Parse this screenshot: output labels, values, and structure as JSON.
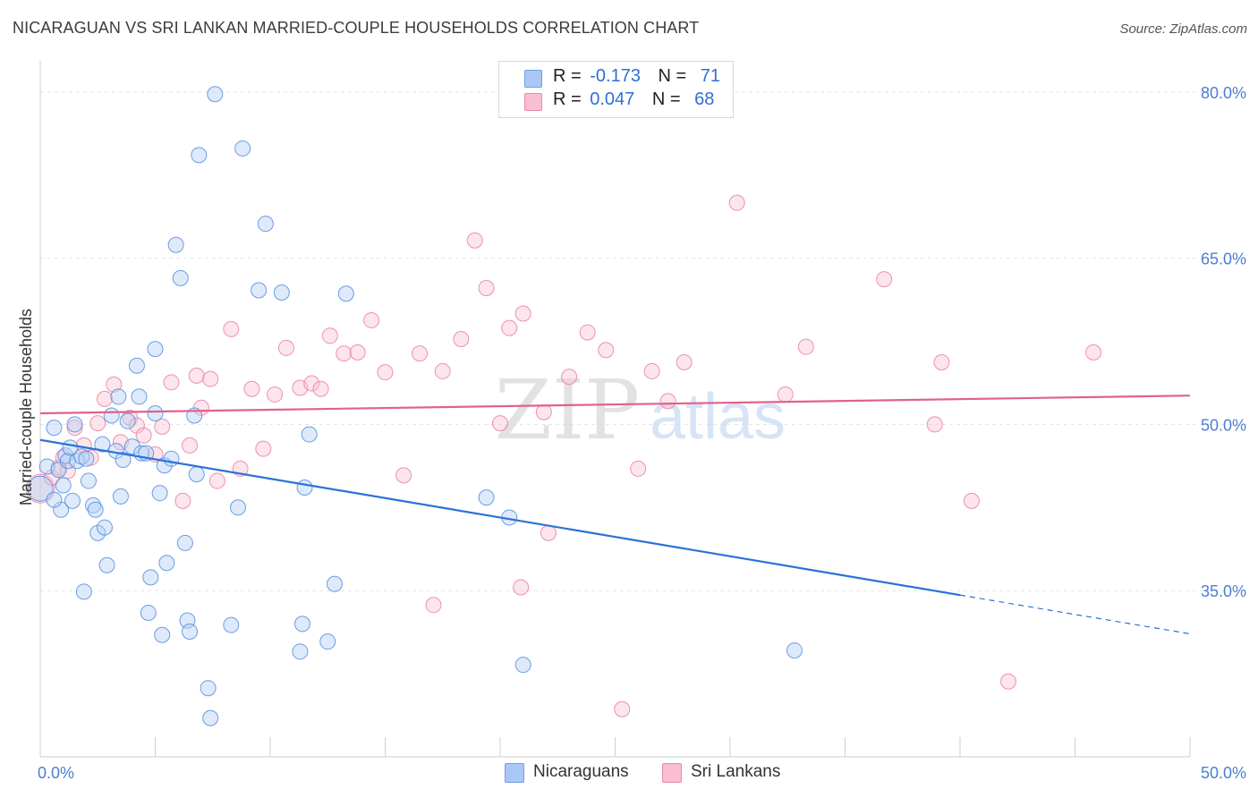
{
  "title": "NICARAGUAN VS SRI LANKAN MARRIED-COUPLE HOUSEHOLDS CORRELATION CHART",
  "source": "Source: ZipAtlas.com",
  "watermark": {
    "zip": "ZIP",
    "atlas": "atlas"
  },
  "legend": {
    "rows": [
      {
        "r_label": "R =",
        "r_value": "-0.173",
        "n_label": "N =",
        "n_value": "71",
        "color": "#a9c8f5",
        "border": "#6f9fe0"
      },
      {
        "r_label": "R =",
        "r_value": "0.047",
        "n_label": "N =",
        "n_value": "68",
        "color": "#f7bfd0",
        "border": "#e88aa8"
      }
    ]
  },
  "bottom_legend": {
    "series1": "Nicaraguans",
    "series2": "Sri Lankans"
  },
  "chart_data": {
    "type": "scatter",
    "title": "NICARAGUAN VS SRI LANKAN MARRIED-COUPLE HOUSEHOLDS CORRELATION CHART",
    "xlabel": "",
    "ylabel": "Married-couple Households",
    "xlim": [
      0,
      50
    ],
    "ylim": [
      20,
      82
    ],
    "x_tick_labels": [
      "0.0%",
      "50.0%"
    ],
    "y_ticks": [
      35,
      50,
      65,
      80
    ],
    "y_tick_labels": [
      "35.0%",
      "50.0%",
      "65.0%",
      "80.0%"
    ],
    "grid": true,
    "colors": {
      "blue": "#4a86e0",
      "blue_fill": "#b6d0f5",
      "pink": "#e8799c",
      "pink_fill": "#f8c6d5",
      "blue_line": "#2a72d8",
      "pink_line": "#e0628c"
    },
    "series": [
      {
        "name": "Nicaraguans",
        "trend": {
          "x0": 0,
          "y0": 48.6,
          "x1": 40,
          "y1": 34.6,
          "dash_to_x": 50,
          "dash_to_y": 31.1
        },
        "points": [
          [
            0.0,
            44.2
          ],
          [
            0.3,
            46.2
          ],
          [
            0.6,
            49.7
          ],
          [
            0.8,
            45.9
          ],
          [
            0.9,
            42.3
          ],
          [
            1.0,
            44.5
          ],
          [
            1.1,
            47.2
          ],
          [
            1.2,
            46.7
          ],
          [
            1.3,
            47.9
          ],
          [
            1.4,
            43.1
          ],
          [
            1.5,
            50.0
          ],
          [
            1.6,
            46.7
          ],
          [
            1.8,
            47.1
          ],
          [
            2.0,
            46.9
          ],
          [
            2.1,
            44.9
          ],
          [
            2.3,
            42.7
          ],
          [
            2.4,
            42.3
          ],
          [
            2.5,
            40.2
          ],
          [
            2.7,
            48.2
          ],
          [
            2.8,
            40.7
          ],
          [
            3.1,
            50.8
          ],
          [
            3.3,
            47.6
          ],
          [
            3.4,
            52.5
          ],
          [
            3.5,
            43.5
          ],
          [
            3.6,
            46.8
          ],
          [
            3.8,
            50.3
          ],
          [
            4.0,
            48.0
          ],
          [
            4.2,
            55.3
          ],
          [
            4.3,
            52.5
          ],
          [
            4.4,
            47.4
          ],
          [
            4.6,
            47.4
          ],
          [
            4.8,
            36.2
          ],
          [
            5.0,
            56.8
          ],
          [
            5.0,
            51.0
          ],
          [
            5.2,
            43.8
          ],
          [
            5.3,
            31.0
          ],
          [
            5.4,
            46.3
          ],
          [
            5.5,
            37.5
          ],
          [
            5.7,
            46.9
          ],
          [
            5.9,
            66.2
          ],
          [
            6.1,
            63.2
          ],
          [
            6.3,
            39.3
          ],
          [
            6.4,
            32.3
          ],
          [
            6.5,
            31.3
          ],
          [
            6.7,
            50.8
          ],
          [
            6.8,
            45.5
          ],
          [
            6.9,
            74.3
          ],
          [
            7.3,
            26.2
          ],
          [
            7.4,
            23.5
          ],
          [
            7.6,
            79.8
          ],
          [
            8.3,
            31.9
          ],
          [
            8.6,
            42.5
          ],
          [
            8.8,
            74.9
          ],
          [
            9.5,
            62.1
          ],
          [
            9.8,
            68.1
          ],
          [
            10.5,
            61.9
          ],
          [
            11.3,
            29.5
          ],
          [
            11.4,
            32.0
          ],
          [
            11.5,
            44.3
          ],
          [
            11.7,
            49.1
          ],
          [
            12.5,
            30.4
          ],
          [
            12.8,
            35.6
          ],
          [
            13.3,
            61.8
          ],
          [
            19.4,
            43.4
          ],
          [
            20.4,
            41.6
          ],
          [
            21.0,
            28.3
          ],
          [
            32.8,
            29.6
          ],
          [
            0.6,
            43.2
          ],
          [
            2.9,
            37.3
          ],
          [
            1.9,
            34.9
          ],
          [
            4.7,
            33.0
          ]
        ]
      },
      {
        "name": "Sri Lankans",
        "trend": {
          "x0": 0,
          "y0": 51.0,
          "x1": 50,
          "y1": 52.6
        },
        "points": [
          [
            0.0,
            44.2
          ],
          [
            0.5,
            45.2
          ],
          [
            0.8,
            46.1
          ],
          [
            1.0,
            47.0
          ],
          [
            1.2,
            45.8
          ],
          [
            1.5,
            49.7
          ],
          [
            1.9,
            48.1
          ],
          [
            2.2,
            47.0
          ],
          [
            2.5,
            50.1
          ],
          [
            2.8,
            52.3
          ],
          [
            3.2,
            53.6
          ],
          [
            3.5,
            48.4
          ],
          [
            3.9,
            50.6
          ],
          [
            4.2,
            49.9
          ],
          [
            4.5,
            49.0
          ],
          [
            5.0,
            47.3
          ],
          [
            5.3,
            49.8
          ],
          [
            5.7,
            53.8
          ],
          [
            6.2,
            43.1
          ],
          [
            6.5,
            48.1
          ],
          [
            6.8,
            54.4
          ],
          [
            7.0,
            51.5
          ],
          [
            7.4,
            54.1
          ],
          [
            7.7,
            44.9
          ],
          [
            8.3,
            58.6
          ],
          [
            8.7,
            46.0
          ],
          [
            9.2,
            53.2
          ],
          [
            9.7,
            47.8
          ],
          [
            10.2,
            52.7
          ],
          [
            10.7,
            56.9
          ],
          [
            11.3,
            53.3
          ],
          [
            11.8,
            53.7
          ],
          [
            12.2,
            53.2
          ],
          [
            12.6,
            58.0
          ],
          [
            13.2,
            56.4
          ],
          [
            13.8,
            56.5
          ],
          [
            14.4,
            59.4
          ],
          [
            15.0,
            54.7
          ],
          [
            15.8,
            45.4
          ],
          [
            16.5,
            56.4
          ],
          [
            17.1,
            33.7
          ],
          [
            17.5,
            54.8
          ],
          [
            18.3,
            57.7
          ],
          [
            18.9,
            66.6
          ],
          [
            19.4,
            62.3
          ],
          [
            20.0,
            50.1
          ],
          [
            20.4,
            58.7
          ],
          [
            20.9,
            35.3
          ],
          [
            21.0,
            60.0
          ],
          [
            21.9,
            51.1
          ],
          [
            22.1,
            40.2
          ],
          [
            23.0,
            54.3
          ],
          [
            23.8,
            58.3
          ],
          [
            24.6,
            56.7
          ],
          [
            25.3,
            24.3
          ],
          [
            26.0,
            46.0
          ],
          [
            26.6,
            54.8
          ],
          [
            27.3,
            52.1
          ],
          [
            28.0,
            55.6
          ],
          [
            30.3,
            70.0
          ],
          [
            32.4,
            52.7
          ],
          [
            33.3,
            57.0
          ],
          [
            36.7,
            63.1
          ],
          [
            38.9,
            50.0
          ],
          [
            39.2,
            55.6
          ],
          [
            40.5,
            43.1
          ],
          [
            42.1,
            26.8
          ],
          [
            45.8,
            56.5
          ]
        ]
      }
    ]
  }
}
